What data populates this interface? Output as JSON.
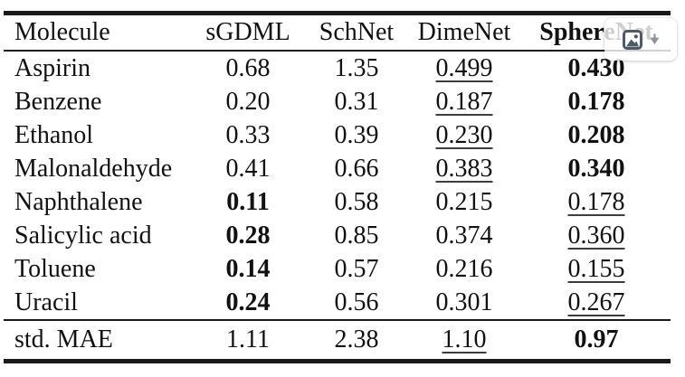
{
  "colors": {
    "text": "#111111",
    "rule": "#191919",
    "overlay_icon": "#4e5a68",
    "overlay_arrow": "#8d939c",
    "overlay_background": "rgba(255,255,255,0.8)"
  },
  "table": {
    "columns": [
      {
        "label": "Molecule",
        "align": "left",
        "style": "normal"
      },
      {
        "label": "sGDML",
        "align": "center",
        "style": "normal"
      },
      {
        "label": "SchNet",
        "align": "center",
        "style": "normal"
      },
      {
        "label": "DimeNet",
        "align": "center",
        "style": "normal"
      },
      {
        "label": "SphereNet",
        "align": "center",
        "style": "bold"
      }
    ],
    "rows": [
      {
        "molecule": "Aspirin",
        "cells": [
          {
            "text": "0.68",
            "style": "normal"
          },
          {
            "text": "1.35",
            "style": "normal"
          },
          {
            "text": "0.499",
            "style": "underline"
          },
          {
            "text": "0.430",
            "style": "bold"
          }
        ]
      },
      {
        "molecule": "Benzene",
        "cells": [
          {
            "text": "0.20",
            "style": "normal"
          },
          {
            "text": "0.31",
            "style": "normal"
          },
          {
            "text": "0.187",
            "style": "underline"
          },
          {
            "text": "0.178",
            "style": "bold"
          }
        ]
      },
      {
        "molecule": "Ethanol",
        "cells": [
          {
            "text": "0.33",
            "style": "normal"
          },
          {
            "text": "0.39",
            "style": "normal"
          },
          {
            "text": "0.230",
            "style": "underline"
          },
          {
            "text": "0.208",
            "style": "bold"
          }
        ]
      },
      {
        "molecule": "Malonaldehyde",
        "cells": [
          {
            "text": "0.41",
            "style": "normal"
          },
          {
            "text": "0.66",
            "style": "normal"
          },
          {
            "text": "0.383",
            "style": "underline"
          },
          {
            "text": "0.340",
            "style": "bold"
          }
        ]
      },
      {
        "molecule": "Naphthalene",
        "cells": [
          {
            "text": "0.11",
            "style": "bold"
          },
          {
            "text": "0.58",
            "style": "normal"
          },
          {
            "text": "0.215",
            "style": "normal"
          },
          {
            "text": "0.178",
            "style": "underline"
          }
        ]
      },
      {
        "molecule": "Salicylic acid",
        "cells": [
          {
            "text": "0.28",
            "style": "bold"
          },
          {
            "text": "0.85",
            "style": "normal"
          },
          {
            "text": "0.374",
            "style": "normal"
          },
          {
            "text": "0.360",
            "style": "underline"
          }
        ]
      },
      {
        "molecule": "Toluene",
        "cells": [
          {
            "text": "0.14",
            "style": "bold"
          },
          {
            "text": "0.57",
            "style": "normal"
          },
          {
            "text": "0.216",
            "style": "normal"
          },
          {
            "text": "0.155",
            "style": "underline"
          }
        ]
      },
      {
        "molecule": "Uracil",
        "cells": [
          {
            "text": "0.24",
            "style": "bold"
          },
          {
            "text": "0.56",
            "style": "normal"
          },
          {
            "text": "0.301",
            "style": "normal"
          },
          {
            "text": "0.267",
            "style": "underline"
          }
        ]
      }
    ],
    "footer": {
      "label": "std. MAE",
      "cells": [
        {
          "text": "1.11",
          "style": "normal"
        },
        {
          "text": "2.38",
          "style": "normal"
        },
        {
          "text": "1.10",
          "style": "underline"
        },
        {
          "text": "0.97",
          "style": "bold"
        }
      ]
    }
  },
  "overlay": {
    "image_icon": "image-icon",
    "arrow_icon": "down-arrow-icon"
  }
}
